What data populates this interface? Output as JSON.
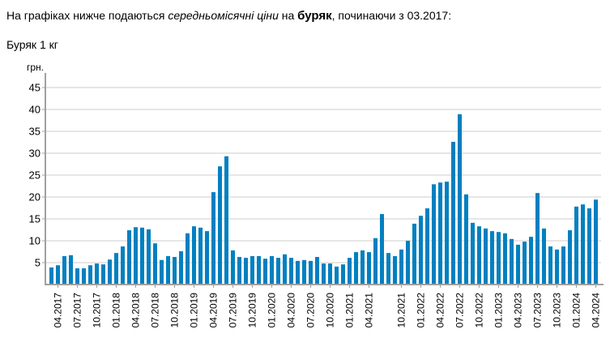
{
  "intro": {
    "prefix": "На графіках нижче подаються ",
    "italic": "середньомісячні ціни",
    "middle": " на ",
    "bold": "буряк",
    "suffix": ", починаючи з 03.2017:"
  },
  "subtitle": "Буряк 1 кг",
  "colors": {
    "bar": "#0080c0",
    "grid": "#e6e6e6",
    "axis": "#a0a0a0"
  },
  "chart_data": {
    "type": "bar",
    "title": "Буряк 1 кг",
    "xlabel": "",
    "ylabel": "грн.",
    "ylim": [
      0,
      47
    ],
    "yticks": [
      5,
      10,
      15,
      20,
      25,
      30,
      35,
      40,
      45
    ],
    "grid": true,
    "legend": null,
    "tick_labels": [
      "04.2017",
      "07.2017",
      "10.2017",
      "01.2018",
      "04.2018",
      "07.2018",
      "10.2018",
      "01.2019",
      "04.2019",
      "07.2019",
      "10.2019",
      "01.2020",
      "04.2020",
      "07.2020",
      "10.2020",
      "01.2021",
      "04.2021",
      "10.2021",
      "01.2022",
      "04.2022",
      "07.2022",
      "10.2022",
      "01.2023",
      "04.2023",
      "07.2023",
      "10.2023",
      "01.2024",
      "04.2024"
    ],
    "categories": [
      "03.2017",
      "04.2017",
      "05.2017",
      "06.2017",
      "07.2017",
      "08.2017",
      "09.2017",
      "10.2017",
      "11.2017",
      "12.2017",
      "01.2018",
      "02.2018",
      "03.2018",
      "04.2018",
      "05.2018",
      "06.2018",
      "07.2018",
      "08.2018",
      "09.2018",
      "10.2018",
      "11.2018",
      "12.2018",
      "01.2019",
      "02.2019",
      "03.2019",
      "04.2019",
      "05.2019",
      "06.2019",
      "07.2019",
      "08.2019",
      "09.2019",
      "10.2019",
      "11.2019",
      "12.2019",
      "01.2020",
      "02.2020",
      "03.2020",
      "04.2020",
      "05.2020",
      "06.2020",
      "07.2020",
      "08.2020",
      "09.2020",
      "10.2020",
      "11.2020",
      "12.2020",
      "01.2021",
      "02.2021",
      "03.2021",
      "04.2021",
      "05.2021",
      "06.2021",
      "08.2021",
      "09.2021",
      "10.2021",
      "11.2021",
      "12.2021",
      "01.2022",
      "02.2022",
      "03.2022",
      "04.2022",
      "05.2022",
      "06.2022",
      "07.2022",
      "08.2022",
      "09.2022",
      "10.2022",
      "11.2022",
      "12.2022",
      "01.2023",
      "02.2023",
      "03.2023",
      "04.2023",
      "05.2023",
      "06.2023",
      "07.2023",
      "08.2023",
      "09.2023",
      "10.2023",
      "11.2023",
      "12.2023",
      "01.2024",
      "02.2024",
      "03.2024",
      "04.2024"
    ],
    "values": [
      3.9,
      4.4,
      6.5,
      6.7,
      3.7,
      3.7,
      4.4,
      4.8,
      4.6,
      5.7,
      7.2,
      8.7,
      12.4,
      13.1,
      13.0,
      12.6,
      9.4,
      5.6,
      6.5,
      6.3,
      7.6,
      11.7,
      13.3,
      13.0,
      12.2,
      21.1,
      27.0,
      29.3,
      7.8,
      6.3,
      6.1,
      6.5,
      6.5,
      5.9,
      6.5,
      6.1,
      6.9,
      6.1,
      5.4,
      5.6,
      5.4,
      6.3,
      4.8,
      4.8,
      4.1,
      4.6,
      6.1,
      7.4,
      7.8,
      7.4,
      10.6,
      16.1,
      7.2,
      6.5,
      8.0,
      10.0,
      13.9,
      15.7,
      17.4,
      22.9,
      23.3,
      23.5,
      32.6,
      38.9,
      20.6,
      14.1,
      13.3,
      12.8,
      12.2,
      12.0,
      11.7,
      10.4,
      9.1,
      9.8,
      10.9,
      20.9,
      12.8,
      8.7,
      8.0,
      8.7,
      12.4,
      17.8,
      18.3,
      17.4,
      19.4
    ]
  }
}
